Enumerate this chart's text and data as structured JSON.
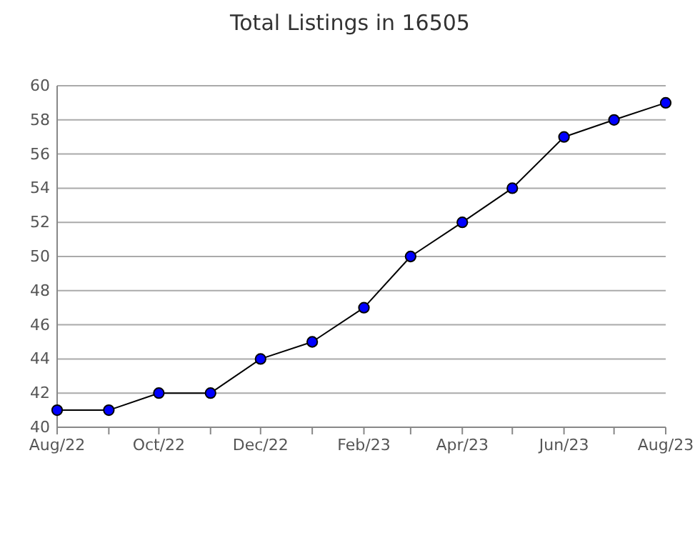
{
  "chart_data": {
    "type": "line",
    "title": "Total Listings in 16505",
    "x": [
      "2022-08",
      "2022-09",
      "2022-10",
      "2022-11",
      "2022-12",
      "2023-01",
      "2023-02",
      "2023-03",
      "2023-04",
      "2023-05",
      "2023-06",
      "2023-07",
      "2023-08"
    ],
    "series": [
      {
        "color": "#0000ff",
        "values": [
          41,
          41,
          42,
          42,
          44,
          45,
          47,
          50,
          52,
          54,
          57,
          58,
          59
        ]
      }
    ],
    "xlim": [
      "2022-08",
      "2023-08"
    ],
    "xticks": [
      {
        "value": "2022-08",
        "label": "Aug/22"
      },
      {
        "value": "2022-09",
        "label": null
      },
      {
        "value": "2022-10",
        "label": "Oct/22"
      },
      {
        "value": "2022-11",
        "label": null
      },
      {
        "value": "2022-12",
        "label": "Dec/22"
      },
      {
        "value": "2023-01",
        "label": null
      },
      {
        "value": "2023-02",
        "label": "Feb/23"
      },
      {
        "value": "2023-03",
        "label": null
      },
      {
        "value": "2023-04",
        "label": "Apr/23"
      },
      {
        "value": "2023-05",
        "label": null
      },
      {
        "value": "2023-06",
        "label": "Jun/23"
      },
      {
        "value": "2023-07",
        "label": null
      },
      {
        "value": "2023-08",
        "label": "Aug/23"
      }
    ],
    "ylim": [
      40,
      60
    ],
    "yticks": [
      40,
      42,
      44,
      46,
      48,
      50,
      52,
      54,
      56,
      58,
      60
    ],
    "grid": "y",
    "marker": "circle",
    "line_style": "solid"
  }
}
